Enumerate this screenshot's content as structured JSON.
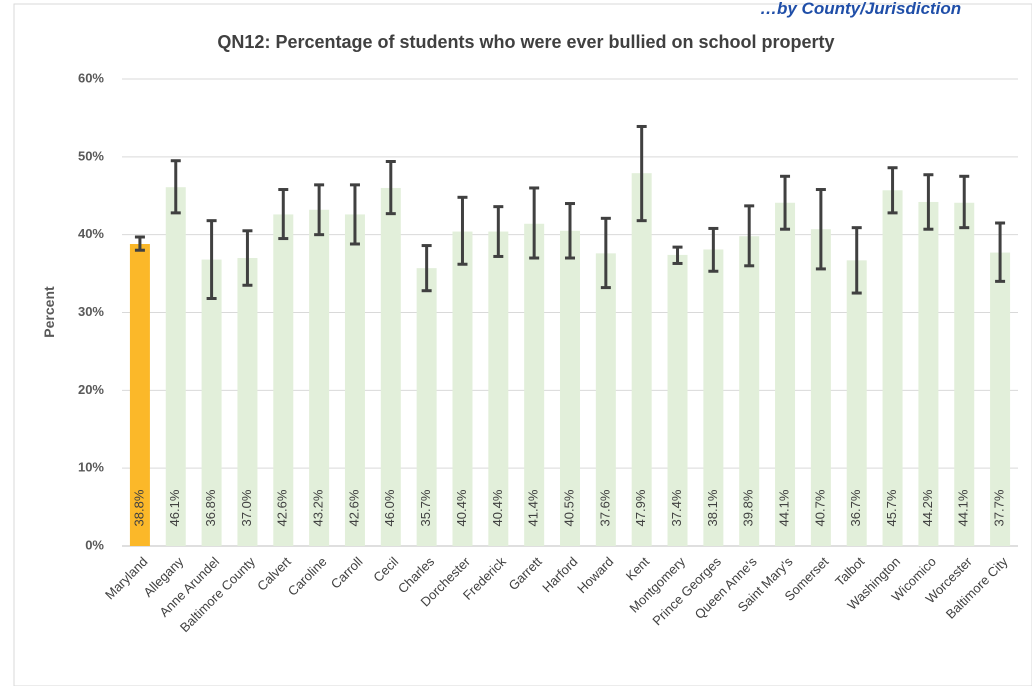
{
  "top_banner_text": "…by County/Jurisdiction",
  "chart_data": {
    "type": "bar",
    "title": "QN12: Percentage of students who were ever bullied on school property",
    "xlabel": "",
    "ylabel": "Percent",
    "ylim": [
      0,
      60
    ],
    "yticks": [
      "0%",
      "10%",
      "20%",
      "30%",
      "40%",
      "50%",
      "60%"
    ],
    "grid": true,
    "colors": {
      "highlight": "#FBB829",
      "default": "#E2EFDA",
      "error_bar": "#404040",
      "grid": "#D9D9D9"
    },
    "categories": [
      "Maryland",
      "Allegany",
      "Anne Arundel",
      "Baltimore County",
      "Calvert",
      "Caroline",
      "Carroll",
      "Cecil",
      "Charles",
      "Dorchester",
      "Frederick",
      "Garrett",
      "Harford",
      "Howard",
      "Kent",
      "Montgomery",
      "Prince Georges",
      "Queen Anne's",
      "Saint Mary's",
      "Somerset",
      "Talbot",
      "Washington",
      "Wicomico",
      "Worcester",
      "Baltimore City"
    ],
    "values": [
      38.8,
      46.1,
      36.8,
      37.0,
      42.6,
      43.2,
      42.6,
      46.0,
      35.7,
      40.4,
      40.4,
      41.4,
      40.5,
      37.6,
      47.9,
      37.4,
      38.1,
      39.8,
      44.1,
      40.7,
      36.7,
      45.7,
      44.2,
      44.1,
      37.7
    ],
    "labels": [
      "38.8%",
      "46.1%",
      "36.8%",
      "37.0%",
      "42.6%",
      "43.2%",
      "42.6%",
      "46.0%",
      "35.7%",
      "40.4%",
      "40.4%",
      "41.4%",
      "40.5%",
      "37.6%",
      "47.9%",
      "37.4%",
      "38.1%",
      "39.8%",
      "44.1%",
      "40.7%",
      "36.7%",
      "45.7%",
      "44.2%",
      "44.1%",
      "37.7%"
    ],
    "ci_lower": [
      38.0,
      42.8,
      31.8,
      33.5,
      39.5,
      40.0,
      38.8,
      42.7,
      32.8,
      36.2,
      37.2,
      37.0,
      37.0,
      33.2,
      41.8,
      36.3,
      35.3,
      36.0,
      40.7,
      35.6,
      32.5,
      42.8,
      40.7,
      40.9,
      34.0
    ],
    "ci_upper": [
      39.7,
      49.5,
      41.8,
      40.5,
      45.8,
      46.4,
      46.4,
      49.4,
      38.6,
      44.8,
      43.6,
      46.0,
      44.0,
      42.1,
      53.9,
      38.4,
      40.8,
      43.7,
      47.5,
      45.8,
      40.9,
      48.6,
      47.7,
      47.5,
      41.5
    ],
    "highlight_index": 0
  }
}
